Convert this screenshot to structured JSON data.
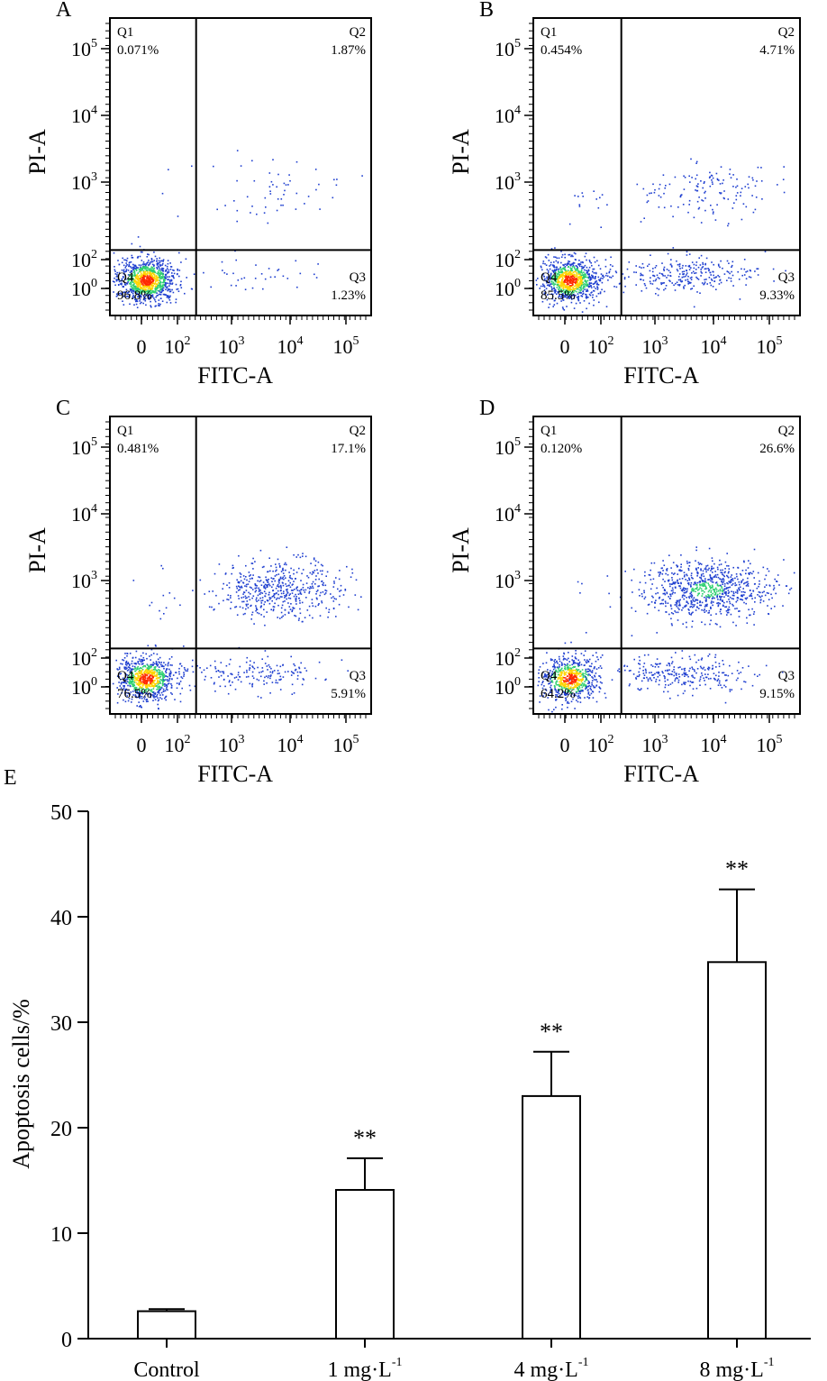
{
  "chart_data": [
    {
      "type": "scatter",
      "panel": "A",
      "xlabel": "FITC-A",
      "ylabel": "PI-A",
      "x_ticks": [
        "0",
        "10^2",
        "10^3",
        "10^4",
        "10^5"
      ],
      "y_ticks": [
        "10^0",
        "10^2",
        "10^3",
        "10^4",
        "10^5"
      ],
      "quadrants": [
        {
          "name": "Q1",
          "percent": "0.071%"
        },
        {
          "name": "Q2",
          "percent": "1.87%"
        },
        {
          "name": "Q3",
          "percent": "1.23%"
        },
        {
          "name": "Q4",
          "percent": "96.8%"
        }
      ]
    },
    {
      "type": "scatter",
      "panel": "B",
      "xlabel": "FITC-A",
      "ylabel": "PI-A",
      "x_ticks": [
        "0",
        "10^2",
        "10^3",
        "10^4",
        "10^5"
      ],
      "y_ticks": [
        "10^0",
        "10^2",
        "10^3",
        "10^4",
        "10^5"
      ],
      "quadrants": [
        {
          "name": "Q1",
          "percent": "0.454%"
        },
        {
          "name": "Q2",
          "percent": "4.71%"
        },
        {
          "name": "Q3",
          "percent": "9.33%"
        },
        {
          "name": "Q4",
          "percent": "85.5%"
        }
      ]
    },
    {
      "type": "scatter",
      "panel": "C",
      "xlabel": "FITC-A",
      "ylabel": "PI-A",
      "x_ticks": [
        "0",
        "10^2",
        "10^3",
        "10^4",
        "10^5"
      ],
      "y_ticks": [
        "10^0",
        "10^2",
        "10^3",
        "10^4",
        "10^5"
      ],
      "quadrants": [
        {
          "name": "Q1",
          "percent": "0.481%"
        },
        {
          "name": "Q2",
          "percent": "17.1%"
        },
        {
          "name": "Q3",
          "percent": "5.91%"
        },
        {
          "name": "Q4",
          "percent": "76.5%"
        }
      ]
    },
    {
      "type": "scatter",
      "panel": "D",
      "xlabel": "FITC-A",
      "ylabel": "PI-A",
      "x_ticks": [
        "0",
        "10^2",
        "10^3",
        "10^4",
        "10^5"
      ],
      "y_ticks": [
        "10^0",
        "10^2",
        "10^3",
        "10^4",
        "10^5"
      ],
      "quadrants": [
        {
          "name": "Q1",
          "percent": "0.120%"
        },
        {
          "name": "Q2",
          "percent": "26.6%"
        },
        {
          "name": "Q3",
          "percent": "9.15%"
        },
        {
          "name": "Q4",
          "percent": "64.2%"
        }
      ]
    },
    {
      "type": "bar",
      "panel": "E",
      "title": "",
      "xlabel": "",
      "ylabel": "Apoptosis cells/%",
      "ylim": [
        0,
        50
      ],
      "yticks": [
        0,
        10,
        20,
        30,
        40,
        50
      ],
      "categories": [
        {
          "base": "Control",
          "sup": ""
        },
        {
          "base": "1 mg·L",
          "sup": "-1"
        },
        {
          "base": "4 mg·L",
          "sup": "-1"
        },
        {
          "base": "8 mg·L",
          "sup": "-1"
        }
      ],
      "values": [
        2.6,
        14.1,
        23.0,
        35.7
      ],
      "errors": [
        0.2,
        3.0,
        4.2,
        6.9
      ],
      "significance": [
        "",
        "**",
        "**",
        "**"
      ]
    }
  ],
  "colors": {
    "axis": "#000000",
    "dots": "#1f3fd0",
    "density_high": "#ff2a00",
    "density_mid": "#ffd400",
    "density_low": "#2fd070",
    "bar_fill": "#ffffff"
  }
}
